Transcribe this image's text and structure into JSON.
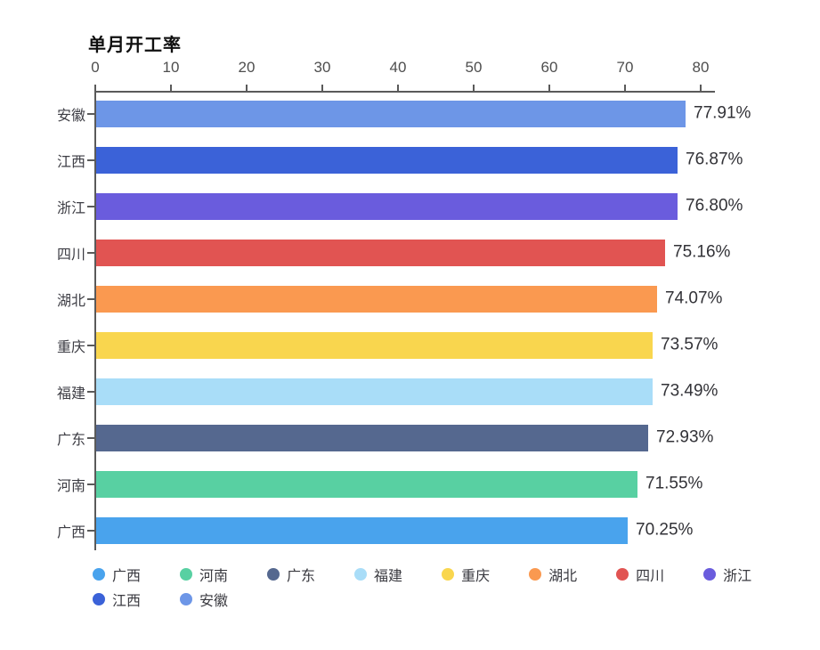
{
  "chart": {
    "title": "单月开工率",
    "axis": {
      "ticks": [
        "0",
        "10",
        "20",
        "30",
        "40",
        "50",
        "60",
        "70",
        "80"
      ]
    },
    "bars": [
      {
        "name": "安徽",
        "value": 77.91,
        "label": "77.91%",
        "color": "#6d96e7"
      },
      {
        "name": "江西",
        "value": 76.87,
        "label": "76.87%",
        "color": "#3b62d8"
      },
      {
        "name": "浙江",
        "value": 76.8,
        "label": "76.80%",
        "color": "#6a5cdd"
      },
      {
        "name": "四川",
        "value": 75.16,
        "label": "75.16%",
        "color": "#e15452"
      },
      {
        "name": "湖北",
        "value": 74.07,
        "label": "74.07%",
        "color": "#fa9950"
      },
      {
        "name": "重庆",
        "value": 73.57,
        "label": "73.57%",
        "color": "#f9d64e"
      },
      {
        "name": "福建",
        "value": 73.49,
        "label": "73.49%",
        "color": "#a9ddf8"
      },
      {
        "name": "广东",
        "value": 72.93,
        "label": "72.93%",
        "color": "#55688f"
      },
      {
        "name": "河南",
        "value": 71.55,
        "label": "71.55%",
        "color": "#58d0a2"
      },
      {
        "name": "广西",
        "value": 70.25,
        "label": "70.25%",
        "color": "#49a3ed"
      }
    ],
    "legend": [
      {
        "name": "广西",
        "color": "#49a3ed"
      },
      {
        "name": "河南",
        "color": "#58d0a2"
      },
      {
        "name": "广东",
        "color": "#55688f"
      },
      {
        "name": "福建",
        "color": "#a9ddf8"
      },
      {
        "name": "重庆",
        "color": "#f9d64e"
      },
      {
        "name": "湖北",
        "color": "#fa9950"
      },
      {
        "name": "四川",
        "color": "#e15452"
      },
      {
        "name": "浙江",
        "color": "#6a5cdd"
      },
      {
        "name": "江西",
        "color": "#3b62d8"
      },
      {
        "name": "安徽",
        "color": "#6d96e7"
      }
    ]
  },
  "chart_data": {
    "type": "bar",
    "orientation": "horizontal",
    "title": "单月开工率",
    "categories": [
      "安徽",
      "江西",
      "浙江",
      "四川",
      "湖北",
      "重庆",
      "福建",
      "广东",
      "河南",
      "广西"
    ],
    "values": [
      77.91,
      76.87,
      76.8,
      75.16,
      74.07,
      73.57,
      73.49,
      72.93,
      71.55,
      70.25
    ],
    "value_labels": [
      "77.91%",
      "76.87%",
      "76.80%",
      "75.16%",
      "74.07%",
      "73.57%",
      "73.49%",
      "72.93%",
      "71.55%",
      "70.25%"
    ],
    "xlabel": "",
    "ylabel": "",
    "xlim": [
      0,
      80
    ],
    "x_ticks": [
      0,
      10,
      20,
      30,
      40,
      50,
      60,
      70,
      80
    ],
    "axis_position": "top",
    "grid": false,
    "legend_position": "bottom",
    "legend_order": [
      "广西",
      "河南",
      "广东",
      "福建",
      "重庆",
      "湖北",
      "四川",
      "浙江",
      "江西",
      "安徽"
    ],
    "colors": {
      "安徽": "#6d96e7",
      "江西": "#3b62d8",
      "浙江": "#6a5cdd",
      "四川": "#e15452",
      "湖北": "#fa9950",
      "重庆": "#f9d64e",
      "福建": "#a9ddf8",
      "广东": "#55688f",
      "河南": "#58d0a2",
      "广西": "#49a3ed"
    }
  }
}
